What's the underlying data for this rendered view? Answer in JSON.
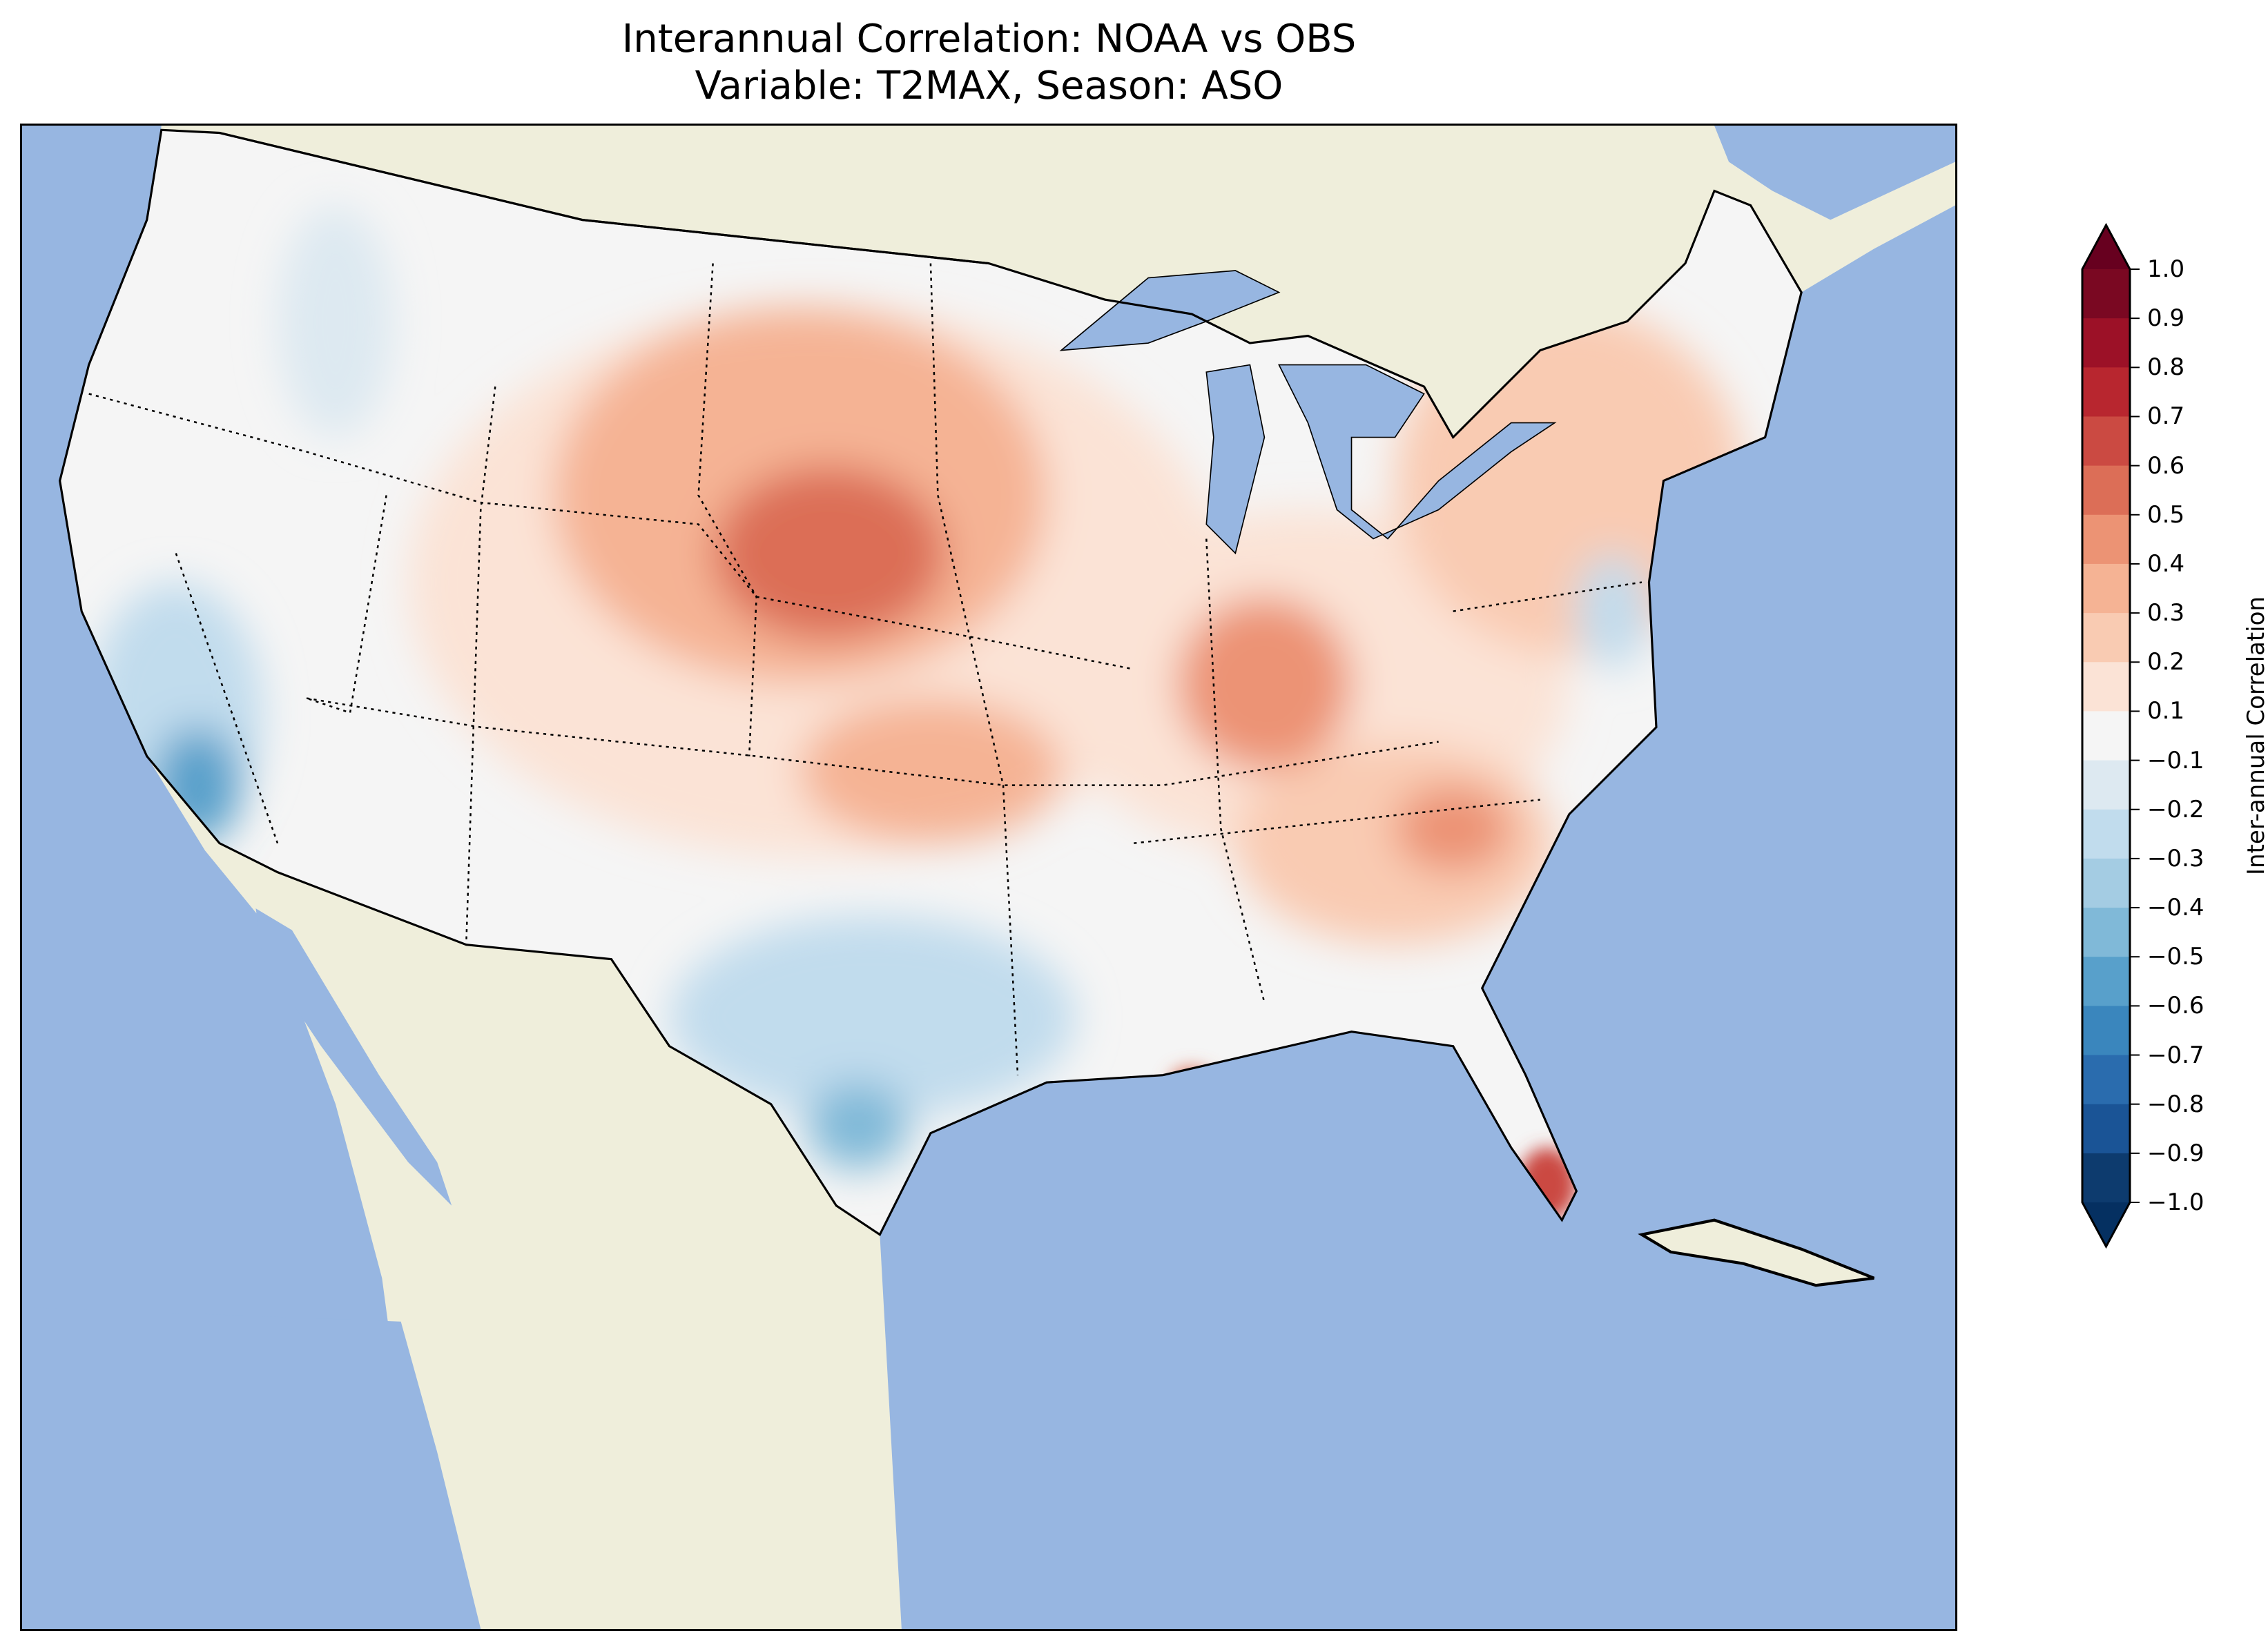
{
  "title": {
    "line1": "Interannual Correlation: NOAA vs OBS",
    "line2": "Variable: T2MAX, Season: ASO"
  },
  "colorbar": {
    "label": "Inter-annual Correlation",
    "ticks": [
      "1.0",
      "0.9",
      "0.8",
      "0.7",
      "0.6",
      "0.5",
      "0.4",
      "0.3",
      "0.2",
      "0.1",
      "−0.1",
      "−0.2",
      "−0.3",
      "−0.4",
      "−0.5",
      "−0.6",
      "−0.7",
      "−0.8",
      "−0.9",
      "−1.0"
    ],
    "colors": [
      "#67001f",
      "#7a0822",
      "#9c1127",
      "#b8262f",
      "#cb4a42",
      "#dc6e57",
      "#ec9374",
      "#f5b394",
      "#f9cbb2",
      "#fbe3d6",
      "#f5f5f5",
      "#dde9f1",
      "#c1dced",
      "#a4cce3",
      "#80b9d8",
      "#58a0cb",
      "#3a86bd",
      "#2a6cae",
      "#1a5496",
      "#0d3b6e",
      "#053061"
    ],
    "extend": "both"
  },
  "map": {
    "ocean_color": "#97b6e1",
    "land_color": "#efeedb",
    "neutral_color": "#f5f5f5"
  }
}
